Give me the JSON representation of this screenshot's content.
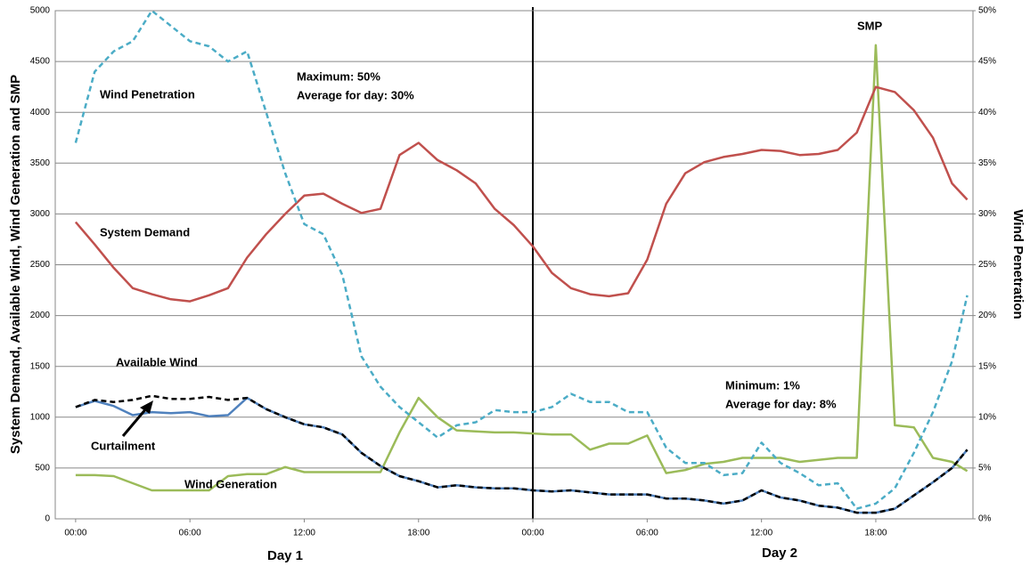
{
  "chart_data": {
    "type": "line",
    "ylabel": "System Demand, Available Wind, Wind Generation and SMP",
    "y2label": "Wind Penetration",
    "x": [
      0,
      1,
      2,
      3,
      4,
      5,
      6,
      7,
      8,
      9,
      10,
      11,
      12,
      13,
      14,
      15,
      16,
      17,
      18,
      19,
      20,
      21,
      22,
      23,
      24,
      25,
      26,
      27,
      28,
      29,
      30,
      31,
      32,
      33,
      34,
      35,
      36,
      37,
      38,
      39,
      40,
      41,
      42,
      43,
      44,
      45,
      46,
      46.8
    ],
    "xlim": [
      -1.07,
      47.1
    ],
    "xticks": [
      {
        "value": 0,
        "label": "00:00"
      },
      {
        "value": 6,
        "label": "06:00"
      },
      {
        "value": 12,
        "label": "12:00"
      },
      {
        "value": 18,
        "label": "18:00"
      },
      {
        "value": 24,
        "label": "00:00"
      },
      {
        "value": 30,
        "label": "06:00"
      },
      {
        "value": 36,
        "label": "12:00"
      },
      {
        "value": 42,
        "label": "18:00"
      }
    ],
    "day_labels": [
      "Day 1",
      "Day 2"
    ],
    "ylim": [
      0,
      5000
    ],
    "yticks": [
      0,
      500,
      1000,
      1500,
      2000,
      2500,
      3000,
      3500,
      4000,
      4500,
      5000
    ],
    "y2lim": [
      0,
      50
    ],
    "y2ticks": [
      {
        "value": 0,
        "label": "0%"
      },
      {
        "value": 5,
        "label": "5%"
      },
      {
        "value": 10,
        "label": "10%"
      },
      {
        "value": 15,
        "label": "15%"
      },
      {
        "value": 20,
        "label": "20%"
      },
      {
        "value": 25,
        "label": "25%"
      },
      {
        "value": 30,
        "label": "30%"
      },
      {
        "value": 35,
        "label": "35%"
      },
      {
        "value": 40,
        "label": "40%"
      },
      {
        "value": 45,
        "label": "45%"
      },
      {
        "value": 50,
        "label": "50%"
      }
    ],
    "grid": true,
    "series": [
      {
        "name": "SMP",
        "color": "#9bbb59",
        "line_style": "solid",
        "values": [
          430,
          430,
          420,
          350,
          280,
          280,
          280,
          280,
          420,
          440,
          440,
          510,
          460,
          460,
          460,
          460,
          460,
          850,
          1190,
          1000,
          870,
          860,
          850,
          850,
          840,
          830,
          830,
          680,
          740,
          740,
          820,
          450,
          480,
          540,
          560,
          600,
          600,
          600,
          560,
          580,
          600,
          600,
          4660,
          920,
          900,
          600,
          560,
          470
        ]
      },
      {
        "name": "System Demand",
        "color": "#c0504d",
        "line_style": "solid",
        "values": [
          2920,
          2700,
          2470,
          2270,
          2210,
          2160,
          2140,
          2200,
          2270,
          2570,
          2800,
          3000,
          3180,
          3200,
          3100,
          3010,
          3050,
          3580,
          3700,
          3530,
          3430,
          3300,
          3050,
          2890,
          2680,
          2420,
          2270,
          2210,
          2190,
          2220,
          2550,
          3100,
          3400,
          3510,
          3560,
          3590,
          3630,
          3620,
          3580,
          3590,
          3630,
          3800,
          4250,
          4200,
          4020,
          3750,
          3300,
          3140
        ]
      },
      {
        "name": "Wind Penetration",
        "color": "#4bacc6",
        "line_style": "dashed",
        "axis": "y2",
        "values": [
          37,
          44,
          46,
          47,
          50,
          48.5,
          47,
          46.5,
          45,
          46,
          40,
          34,
          29,
          28,
          24,
          16,
          13,
          11,
          9.5,
          8,
          9.2,
          9.5,
          10.7,
          10.5,
          10.5,
          11,
          12.3,
          11.5,
          11.5,
          10.5,
          10.5,
          7,
          5.5,
          5.5,
          4.3,
          4.5,
          7.5,
          5.5,
          4.5,
          3.3,
          3.5,
          1,
          1.5,
          3,
          6.5,
          10.5,
          15.5,
          22
        ]
      },
      {
        "name": "Wind Generation",
        "color": "#4f81bd",
        "line_style": "solid",
        "values": [
          1100,
          1160,
          1110,
          1020,
          1050,
          1040,
          1050,
          1010,
          1020,
          1190,
          1080,
          1000,
          930,
          900,
          830,
          650,
          520,
          420,
          370,
          310,
          330,
          310,
          300,
          300,
          280,
          270,
          280,
          260,
          240,
          240,
          240,
          200,
          200,
          180,
          150,
          180,
          280,
          210,
          180,
          130,
          110,
          60,
          60,
          100,
          230,
          360,
          500,
          680
        ]
      },
      {
        "name": "Available Wind",
        "color": "#000000",
        "line_style": "dashed",
        "values": [
          1100,
          1170,
          1150,
          1170,
          1210,
          1180,
          1180,
          1200,
          1170,
          1190,
          1080,
          1000,
          930,
          900,
          830,
          650,
          520,
          420,
          370,
          310,
          330,
          310,
          300,
          300,
          280,
          270,
          280,
          260,
          240,
          240,
          240,
          200,
          200,
          180,
          150,
          180,
          280,
          210,
          180,
          130,
          110,
          60,
          60,
          100,
          230,
          360,
          500,
          680
        ]
      }
    ],
    "annotations": [
      "Maximum: 50%",
      "Average for day: 30%",
      "Curtailment",
      "Minimum: 1%",
      "Average for day: 8%"
    ]
  }
}
